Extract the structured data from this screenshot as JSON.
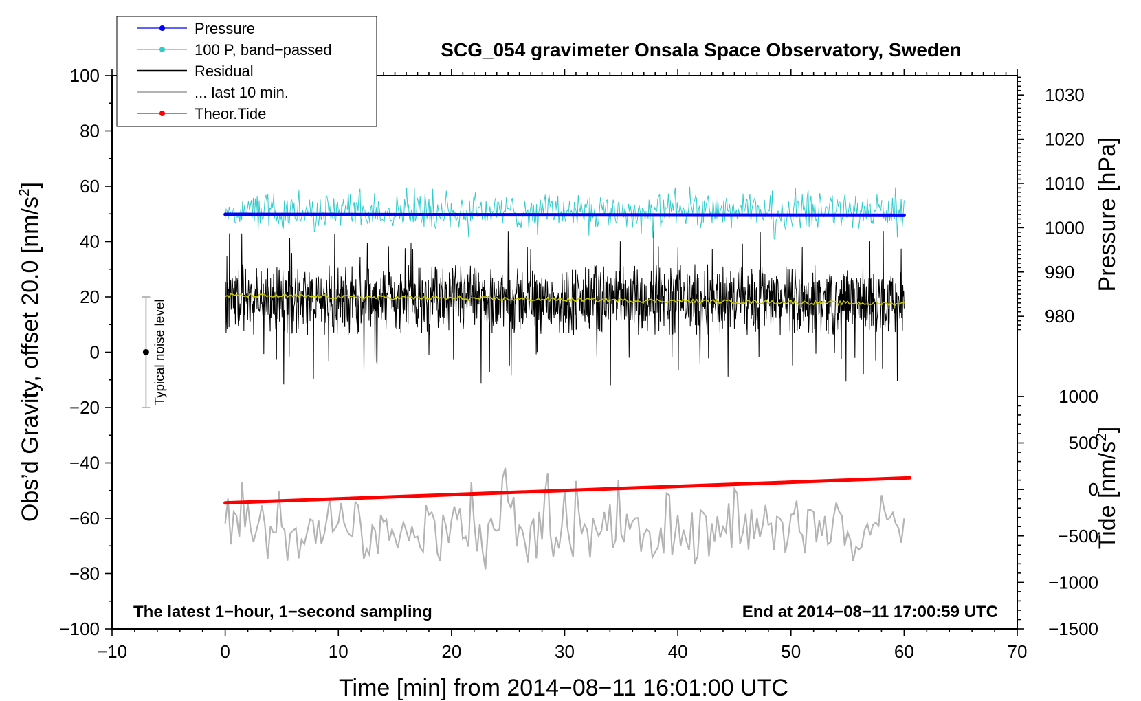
{
  "chart_data": {
    "type": "line",
    "title": "SCG_054 gravimeter Onsala Space Observatory, Sweden",
    "xlabel": "Time [min] from 2014−08−11 16:01:00 UTC",
    "ylabel_main": "Obs’d Gravity, offset 20.0 [nm/s",
    "ylabel_main_sup": "2",
    "ylabel_main_end": "]",
    "ylabel_pressure": "Pressure [hPa]",
    "ylabel_tide": "Tide [nm/s",
    "ylabel_tide_sup": "2",
    "ylabel_tide_end": "]",
    "xlim": [
      -10,
      70
    ],
    "ylim": [
      -100,
      100
    ],
    "x_ticks": [
      -10,
      0,
      10,
      20,
      30,
      40,
      50,
      60,
      70
    ],
    "x_tick_labels": [
      "−10",
      "0",
      "10",
      "20",
      "30",
      "40",
      "50",
      "60",
      "70"
    ],
    "y_ticks": [
      -100,
      -80,
      -60,
      -40,
      -20,
      0,
      20,
      40,
      60,
      80,
      100
    ],
    "y_tick_labels": [
      "−100",
      "−80",
      "−60",
      "−40",
      "−20",
      "0",
      "20",
      "40",
      "60",
      "80",
      "100"
    ],
    "pressure_axis": {
      "ticks": [
        980,
        990,
        1000,
        1010,
        1020,
        1030
      ],
      "tick_labels": [
        "980",
        "990",
        "1000",
        "1010",
        "1020",
        "1030"
      ],
      "map_value": [
        1000,
        1030
      ],
      "map_main": [
        45,
        93
      ]
    },
    "tide_axis": {
      "ticks": [
        -1500,
        -1000,
        -500,
        0,
        500,
        1000
      ],
      "tick_labels": [
        "−1500",
        "−1000",
        "−500",
        "0",
        "500",
        "1000"
      ],
      "map_value": [
        -1500,
        1000
      ],
      "map_main": [
        -100,
        -16
      ]
    },
    "legend": {
      "placement": "top-left",
      "entries": [
        {
          "label": "Pressure",
          "color": "#0000ff",
          "marker": true
        },
        {
          "label": "100 P, band−passed",
          "color": "#33cccc",
          "marker": true
        },
        {
          "label": "Residual",
          "color": "#000000",
          "marker": false
        },
        {
          "label": "... last 10 min.",
          "color": "#b4b4b4",
          "marker": false
        },
        {
          "label": "Theor.Tide",
          "color": "#ff0000",
          "marker": true
        }
      ]
    },
    "noise_bar": {
      "x": -7,
      "center": 0,
      "low": -20,
      "high": 20,
      "label": "Typical noise level"
    },
    "annotations": {
      "bottom_left": "The latest 1−hour, 1−second sampling",
      "bottom_right": "End at 2014−08−11 17:00:59 UTC"
    },
    "series": [
      {
        "name": "Pressure",
        "color": "#0000ff",
        "axis": "pressure",
        "x": [
          0,
          60
        ],
        "values": [
          1003.0,
          1002.8
        ]
      },
      {
        "name": "100 P, band−passed",
        "color": "#33cccc",
        "axis": "main",
        "x_range": [
          0,
          60
        ],
        "center": 51,
        "amplitude": 4,
        "peak_min": 40,
        "peak_max": 60
      },
      {
        "name": "Residual",
        "color": "#000000",
        "axis": "main",
        "x_range": [
          0,
          60
        ],
        "center": 19,
        "amplitude": 8,
        "peak_min": -12,
        "peak_max": 44
      },
      {
        "name": "Residual mean",
        "color": "#c8c800",
        "axis": "main",
        "x": [
          0,
          10,
          20,
          30,
          40,
          50,
          60
        ],
        "values": [
          20.5,
          20.0,
          19.5,
          19.0,
          18.5,
          18.0,
          17.5
        ]
      },
      {
        "name": "... last 10 min.",
        "color": "#b4b4b4",
        "axis": "main",
        "x_range": [
          0,
          60
        ],
        "center": -64,
        "amplitude": 8,
        "peak_min": -81,
        "peak_max": -41
      },
      {
        "name": "Theor.Tide",
        "color": "#ff0000",
        "axis": "tide",
        "x": [
          0,
          60.5
        ],
        "values": [
          -145,
          125
        ]
      }
    ]
  }
}
